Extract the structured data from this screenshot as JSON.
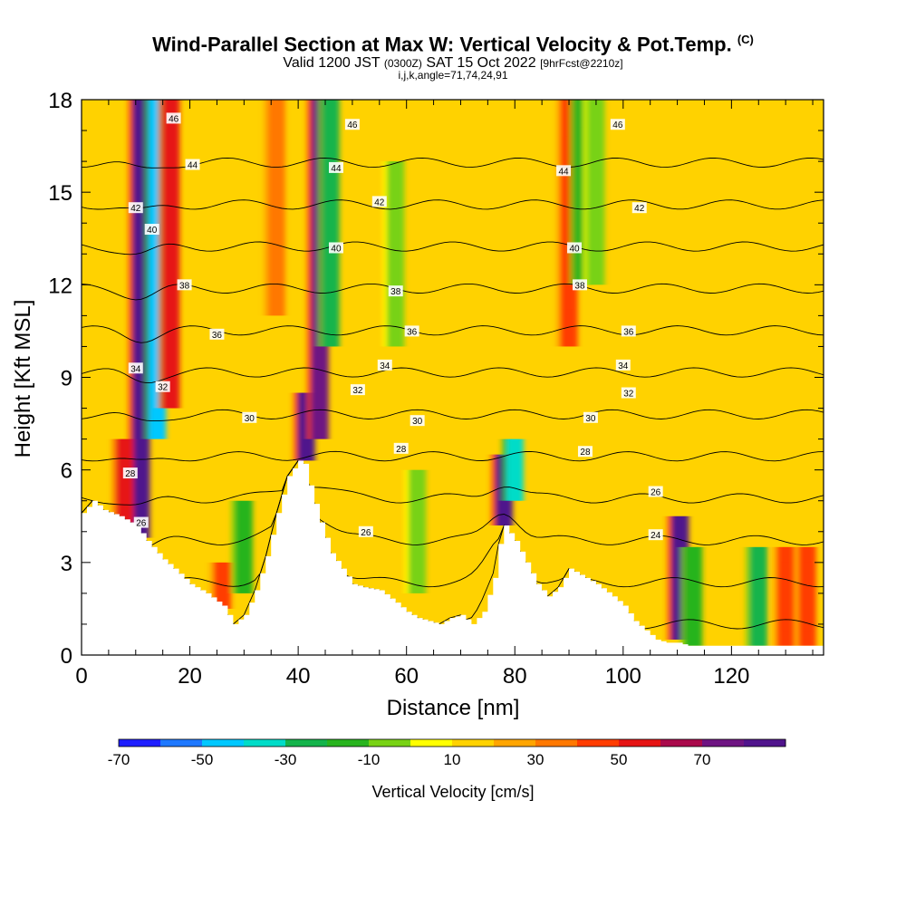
{
  "title": {
    "main": "Wind-Parallel Section at Max W: Vertical Velocity & Pot.Temp.",
    "main_suffix": "(C)",
    "valid_a": "Valid 1200 JST",
    "valid_b": "(0300Z)",
    "valid_c": "SAT 15 Oct 2022",
    "valid_d": "[9hrFcst@2210z]",
    "indices": "i,j,k,angle=71,74,24,91"
  },
  "chart_data": {
    "type": "heatmap",
    "xlabel": "Distance [nm]",
    "ylabel": "Height [Kft MSL]",
    "xlim": [
      0,
      137
    ],
    "ylim": [
      0,
      18
    ],
    "x_ticks": [
      0,
      20,
      40,
      60,
      80,
      100,
      120
    ],
    "y_ticks": [
      0,
      3,
      6,
      9,
      12,
      15,
      18
    ],
    "colorbar": {
      "label": "Vertical Velocity [cm/s]",
      "tick_labels": [
        "-70",
        "-50",
        "-30",
        "-10",
        "10",
        "30",
        "50",
        "70"
      ],
      "levels": [
        -80,
        -70,
        -60,
        -50,
        -40,
        -30,
        -20,
        -10,
        0,
        10,
        20,
        30,
        40,
        50,
        60,
        70,
        80
      ],
      "colors": [
        "#1e1eff",
        "#1e78ff",
        "#00c8ff",
        "#00dcc8",
        "#14b44b",
        "#28b41e",
        "#78d214",
        "#ffff00",
        "#ffd200",
        "#ffa500",
        "#ff7800",
        "#ff3c00",
        "#e61414",
        "#aa0a4b",
        "#6e1482",
        "#50148c"
      ]
    },
    "background_w_cms": 0,
    "terrain": {
      "x": [
        0,
        2,
        4,
        7,
        10,
        12,
        15,
        17,
        20,
        23,
        26,
        28,
        30,
        32,
        34,
        36,
        38,
        40,
        41,
        42,
        44,
        46,
        48,
        50,
        52,
        55,
        58,
        60,
        62,
        64,
        66,
        68,
        70,
        72,
        74,
        76,
        77,
        78,
        80,
        82,
        84,
        86,
        88,
        90,
        92,
        95,
        98,
        100,
        102,
        104,
        106,
        108,
        110,
        112,
        114,
        118,
        122,
        126,
        130,
        134,
        136,
        137
      ],
      "height": [
        4.6,
        5,
        4.7,
        4.5,
        4.2,
        3.7,
        3.1,
        2.8,
        2.3,
        2,
        1.6,
        1,
        1.3,
        2.1,
        3.2,
        4.6,
        5.8,
        6.3,
        6.2,
        5.5,
        4.3,
        3.3,
        2.8,
        2.3,
        2.2,
        2.1,
        1.7,
        1.4,
        1.2,
        1.1,
        1,
        1.2,
        1.3,
        1,
        1.4,
        2.5,
        3.6,
        4.2,
        3.7,
        3,
        2.3,
        1.9,
        2.2,
        2.8,
        2.6,
        2.3,
        1.9,
        1.6,
        1.1,
        0.8,
        0.5,
        0.4,
        0.4,
        0.3,
        0.3,
        0.3,
        0.3,
        0.3,
        0.3,
        0.3,
        0.3,
        0.3
      ]
    },
    "vertical_velocity_features": [
      {
        "x": 11,
        "z_range": [
          3.8,
          18
        ],
        "w": 75
      },
      {
        "x": 14,
        "z_range": [
          7,
          18
        ],
        "w": -55
      },
      {
        "x": 16.5,
        "z_range": [
          8,
          18
        ],
        "w": 45
      },
      {
        "x": 8,
        "z_range": [
          4,
          7
        ],
        "w": 45
      },
      {
        "x": 41.5,
        "z_range": [
          6.3,
          8.5
        ],
        "w": 70
      },
      {
        "x": 44,
        "z_range": [
          7,
          18
        ],
        "w": 65
      },
      {
        "x": 46,
        "z_range": [
          10,
          18
        ],
        "w": -40
      },
      {
        "x": 36,
        "z_range": [
          11,
          18
        ],
        "w": 20
      },
      {
        "x": 78,
        "z_range": [
          4.2,
          6.5
        ],
        "w": 75
      },
      {
        "x": 80,
        "z_range": [
          5,
          7
        ],
        "w": -45
      },
      {
        "x": 90,
        "z_range": [
          10,
          18
        ],
        "w": 30
      },
      {
        "x": 92.5,
        "z_range": [
          12,
          18
        ],
        "w": -30
      },
      {
        "x": 110.5,
        "z_range": [
          0.5,
          4.5
        ],
        "w": 75
      },
      {
        "x": 113,
        "z_range": [
          0.3,
          3.5
        ],
        "w": -25
      },
      {
        "x": 125,
        "z_range": [
          0.3,
          3.5
        ],
        "w": -35
      },
      {
        "x": 130,
        "z_range": [
          0.3,
          3.5
        ],
        "w": 30
      },
      {
        "x": 134,
        "z_range": [
          0.3,
          3.5
        ],
        "w": 30
      },
      {
        "x": 95,
        "z_range": [
          12,
          18
        ],
        "w": -15
      },
      {
        "x": 30,
        "z_range": [
          2,
          5
        ],
        "w": -25
      },
      {
        "x": 62,
        "z_range": [
          2,
          6
        ],
        "w": -20
      },
      {
        "x": 58,
        "z_range": [
          10,
          16
        ],
        "w": -15
      },
      {
        "x": 26,
        "z_range": [
          1.5,
          3
        ],
        "w": 30
      }
    ],
    "theta_labels_c": [
      {
        "value": "46",
        "x": 17,
        "z": 17.4
      },
      {
        "value": "46",
        "x": 50,
        "z": 17.2
      },
      {
        "value": "46",
        "x": 99,
        "z": 17.2
      },
      {
        "value": "44",
        "x": 20.5,
        "z": 15.9
      },
      {
        "value": "44",
        "x": 47,
        "z": 15.8
      },
      {
        "value": "44",
        "x": 89,
        "z": 15.7
      },
      {
        "value": "42",
        "x": 10,
        "z": 14.5
      },
      {
        "value": "42",
        "x": 55,
        "z": 14.7
      },
      {
        "value": "42",
        "x": 103,
        "z": 14.5
      },
      {
        "value": "40",
        "x": 13,
        "z": 13.8
      },
      {
        "value": "40",
        "x": 47,
        "z": 13.2
      },
      {
        "value": "40",
        "x": 91,
        "z": 13.2
      },
      {
        "value": "38",
        "x": 19,
        "z": 12.0
      },
      {
        "value": "38",
        "x": 58,
        "z": 11.8
      },
      {
        "value": "38",
        "x": 92,
        "z": 12.0
      },
      {
        "value": "36",
        "x": 25,
        "z": 10.4
      },
      {
        "value": "36",
        "x": 61,
        "z": 10.5
      },
      {
        "value": "36",
        "x": 101,
        "z": 10.5
      },
      {
        "value": "34",
        "x": 10,
        "z": 9.3
      },
      {
        "value": "34",
        "x": 56,
        "z": 9.4
      },
      {
        "value": "34",
        "x": 100,
        "z": 9.4
      },
      {
        "value": "32",
        "x": 15,
        "z": 8.7
      },
      {
        "value": "32",
        "x": 51,
        "z": 8.6
      },
      {
        "value": "32",
        "x": 101,
        "z": 8.5
      },
      {
        "value": "30",
        "x": 31,
        "z": 7.7
      },
      {
        "value": "30",
        "x": 62,
        "z": 7.6
      },
      {
        "value": "30",
        "x": 94,
        "z": 7.7
      },
      {
        "value": "28",
        "x": 59,
        "z": 6.7
      },
      {
        "value": "28",
        "x": 93,
        "z": 6.6
      },
      {
        "value": "28",
        "x": 9,
        "z": 5.9
      },
      {
        "value": "26",
        "x": 106,
        "z": 5.3
      },
      {
        "value": "26",
        "x": 11,
        "z": 4.3
      },
      {
        "value": "26",
        "x": 52.5,
        "z": 4.0
      },
      {
        "value": "24",
        "x": 106,
        "z": 3.9
      }
    ],
    "theta_levels_c": [
      24,
      26,
      28,
      30,
      32,
      34,
      36,
      38,
      40,
      42,
      44,
      46
    ]
  }
}
